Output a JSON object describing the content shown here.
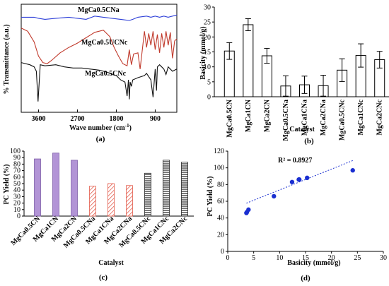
{
  "chart_data": [
    {
      "type": "line",
      "panel": "(a)",
      "xlabel": "Wave number (cm",
      "xlabel_sup": "-1",
      "xlabel_end": ")",
      "ylabel": "% Transmittance (a.u.)",
      "xticks": [
        "3600",
        "2700",
        "1800",
        "900"
      ],
      "x_reversed": true,
      "xlim": [
        4000,
        400
      ],
      "series": [
        {
          "name": "MgCa0.5CNa",
          "color": "#2d3fd8",
          "x": [
            4000,
            3700,
            3600,
            3450,
            3200,
            2900,
            2700,
            2500,
            2300,
            2100,
            1900,
            1700,
            1500,
            1420,
            1300,
            1100,
            1000,
            900,
            800,
            700,
            600,
            500,
            400
          ],
          "y": [
            88,
            88,
            87,
            86,
            87,
            88,
            87,
            86,
            89,
            88,
            87,
            86,
            85,
            86,
            88,
            89,
            88,
            89,
            88,
            89,
            88,
            89,
            90
          ]
        },
        {
          "name": "MgCa0.5UCNc",
          "color": "#c0392b",
          "x": [
            4000,
            3850,
            3700,
            3600,
            3500,
            3400,
            3300,
            3100,
            2900,
            2700,
            2500,
            2300,
            2100,
            1950,
            1850,
            1750,
            1650,
            1550,
            1500,
            1450,
            1400,
            1300,
            1250,
            1150,
            1100,
            1050,
            1000,
            950,
            900,
            850,
            800,
            750,
            700,
            650,
            600,
            550,
            500,
            450,
            400
          ],
          "y": [
            78,
            75,
            65,
            52,
            46,
            45,
            48,
            55,
            60,
            64,
            69,
            74,
            76,
            70,
            60,
            52,
            45,
            43,
            58,
            44,
            54,
            55,
            40,
            75,
            60,
            73,
            62,
            75,
            58,
            72,
            55,
            73,
            60,
            75,
            62,
            74,
            50,
            66,
            68
          ]
        },
        {
          "name": "MgCa0.5CNc",
          "color": "#111111",
          "x": [
            4000,
            3800,
            3700,
            3650,
            3610,
            3560,
            3450,
            3200,
            3000,
            2800,
            2600,
            2400,
            2200,
            2000,
            1900,
            1800,
            1700,
            1600,
            1550,
            1520,
            1500,
            1480,
            1450,
            1420,
            1300,
            1150,
            1100,
            1000,
            950,
            900,
            870,
            850,
            800,
            750,
            700,
            650,
            600,
            500,
            400
          ],
          "y": [
            46,
            44,
            42,
            38,
            10,
            44,
            43,
            44,
            42,
            41,
            41,
            40,
            39,
            37,
            35,
            34,
            30,
            28,
            15,
            30,
            12,
            28,
            24,
            30,
            32,
            34,
            36,
            30,
            14,
            40,
            20,
            42,
            44,
            42,
            40,
            35,
            42,
            38,
            40
          ]
        }
      ]
    },
    {
      "type": "bar",
      "panel": "(b)",
      "xlabel": "Catalyst",
      "ylabel": "Basicity (mmol/g)",
      "ylim": [
        0,
        30
      ],
      "yticks": [
        0,
        5,
        10,
        15,
        20,
        25,
        30
      ],
      "categories": [
        "MgCa0.5CN",
        "MgCa1CN",
        "MgCa2CN",
        "MgCa0.5CNa",
        "MgCa1CNa",
        "MgCa2CNa",
        "MgCa0.5CNc",
        "MgCa1CNc",
        "MgCa2CNc"
      ],
      "values": [
        15.3,
        24.1,
        13.7,
        3.6,
        4.0,
        3.7,
        8.9,
        13.8,
        12.4
      ],
      "errors": [
        2.8,
        2.0,
        2.5,
        3.4,
        2.9,
        3.5,
        3.8,
        3.9,
        2.8
      ]
    },
    {
      "type": "bar",
      "panel": "(c)",
      "xlabel": "Catalyst",
      "ylabel": "PC Yield (%)",
      "ylim": [
        0,
        100
      ],
      "yticks": [
        0,
        10,
        20,
        30,
        40,
        50,
        60,
        70,
        80,
        90,
        100
      ],
      "categories": [
        "MgCa0.5CN",
        "MgCa1CN",
        "MgCa2CN",
        "MgCa0.5CNa",
        "MgCa1CNa",
        "MgCa2CNa",
        "MgCa0.5CNc",
        "MgCa1CNc",
        "MgCa2CNc"
      ],
      "values": [
        88,
        97,
        86,
        46,
        50,
        47,
        66,
        86,
        83
      ],
      "styles": [
        "solid",
        "solid",
        "solid",
        "hatch",
        "hatch",
        "hatch",
        "stripe",
        "stripe",
        "stripe"
      ],
      "colors": {
        "solid": "#b294d6",
        "hatch": "#e35a4a",
        "stripe": "#222222"
      }
    },
    {
      "type": "scatter",
      "panel": "(d)",
      "xlabel": "Basicity (mmol/g)",
      "ylabel": "PC Yield (%)",
      "xlim": [
        0,
        30
      ],
      "ylim": [
        0,
        120
      ],
      "xticks": [
        0,
        5,
        10,
        15,
        20,
        25,
        30
      ],
      "yticks": [
        0,
        20,
        40,
        60,
        80,
        100,
        120
      ],
      "annotation": "R² = 0.8927",
      "points": [
        [
          3.6,
          46
        ],
        [
          3.7,
          47
        ],
        [
          4.0,
          50
        ],
        [
          8.9,
          66
        ],
        [
          12.4,
          83
        ],
        [
          13.7,
          86
        ],
        [
          13.8,
          86
        ],
        [
          15.3,
          88
        ],
        [
          24.1,
          97
        ]
      ],
      "trend": [
        [
          3.6,
          57.7
        ],
        [
          24.1,
          108.7
        ]
      ],
      "color": "#1a2fd1"
    }
  ]
}
